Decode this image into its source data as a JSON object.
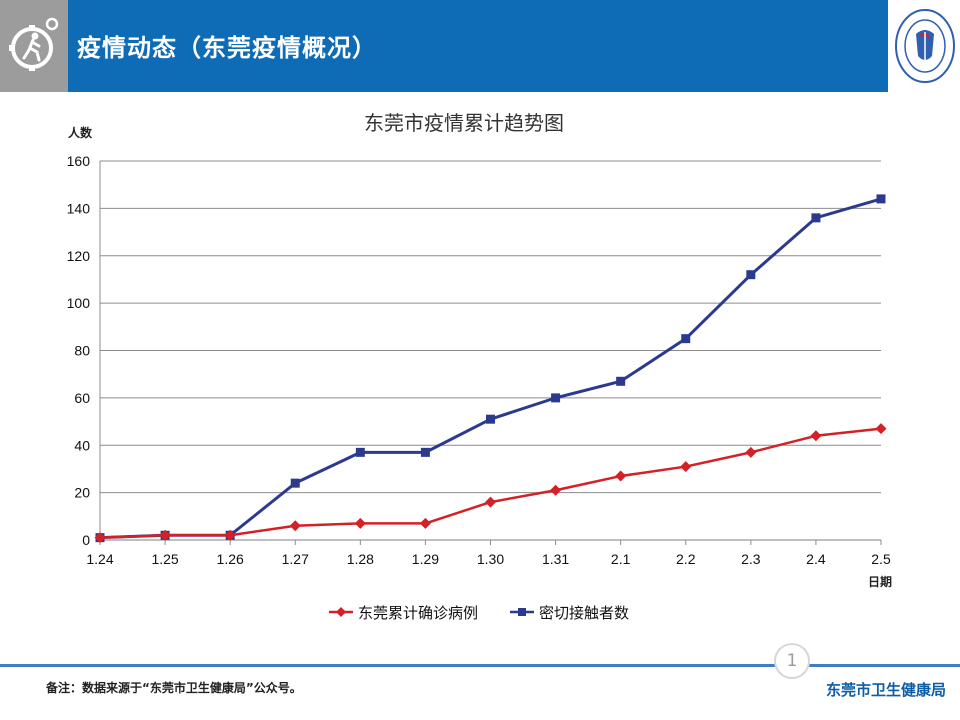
{
  "header": {
    "title": "疫情动态（东莞疫情概况）",
    "logo_icon": "virus-gear-runner-icon",
    "seal_icon": "health-bureau-seal-icon"
  },
  "chart_data": {
    "type": "line",
    "title": "东莞市疫情累计趋势图",
    "xlabel": "日期",
    "ylabel": "人数",
    "categories": [
      "1.24",
      "1.25",
      "1.26",
      "1.27",
      "1.28",
      "1.29",
      "1.30",
      "1.31",
      "2.1",
      "2.2",
      "2.3",
      "2.4",
      "2.5"
    ],
    "ylim": [
      0,
      160
    ],
    "yticks": [
      0,
      20,
      40,
      60,
      80,
      100,
      120,
      140,
      160
    ],
    "grid": true,
    "legend_position": "bottom",
    "series": [
      {
        "name": "东莞累计确诊病例",
        "color": "#d42027",
        "marker": "diamond",
        "values": [
          1,
          2,
          2,
          6,
          7,
          7,
          16,
          21,
          27,
          31,
          37,
          44,
          47
        ]
      },
      {
        "name": "密切接触者数",
        "color": "#2b3a8f",
        "marker": "square",
        "values": [
          1,
          2,
          2,
          24,
          37,
          37,
          51,
          60,
          67,
          85,
          112,
          136,
          144
        ]
      }
    ]
  },
  "footer": {
    "page_number": "1",
    "note": "备注：数据来源于“东莞市卫生健康局”公众号。",
    "organization": "东莞市卫生健康局"
  }
}
